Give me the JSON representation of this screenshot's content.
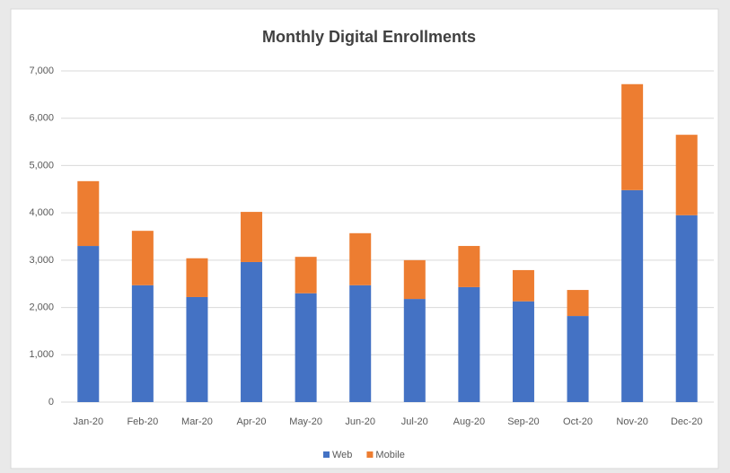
{
  "chart_data": {
    "type": "stacked_bar",
    "title": "Monthly Digital Enrollments",
    "categories": [
      "Jan-20",
      "Feb-20",
      "Mar-20",
      "Apr-20",
      "May-20",
      "Jun-20",
      "Jul-20",
      "Aug-20",
      "Sep-20",
      "Oct-20",
      "Nov-20",
      "Dec-20"
    ],
    "series": [
      {
        "name": "Web",
        "color": "#4472c4",
        "values": [
          3300,
          2470,
          2220,
          2960,
          2300,
          2470,
          2180,
          2430,
          2130,
          1820,
          4480,
          3950
        ]
      },
      {
        "name": "Mobile",
        "color": "#ed7d31",
        "values": [
          1370,
          1150,
          820,
          1060,
          770,
          1100,
          820,
          870,
          660,
          550,
          2240,
          1700
        ]
      }
    ],
    "ylim": [
      0,
      7000
    ],
    "yticks": [
      0,
      {
        "value": 1000,
        "label": "1,000"
      },
      {
        "value": 2000,
        "label": "2,000"
      },
      {
        "value": 3000,
        "label": "3,000"
      },
      {
        "value": 4000,
        "label": "4,000"
      },
      {
        "value": 5000,
        "label": "5,000"
      },
      {
        "value": 6000,
        "label": "6,000"
      },
      {
        "value": 7000,
        "label": "7,000"
      }
    ],
    "grid": true,
    "legend": "bottom"
  }
}
